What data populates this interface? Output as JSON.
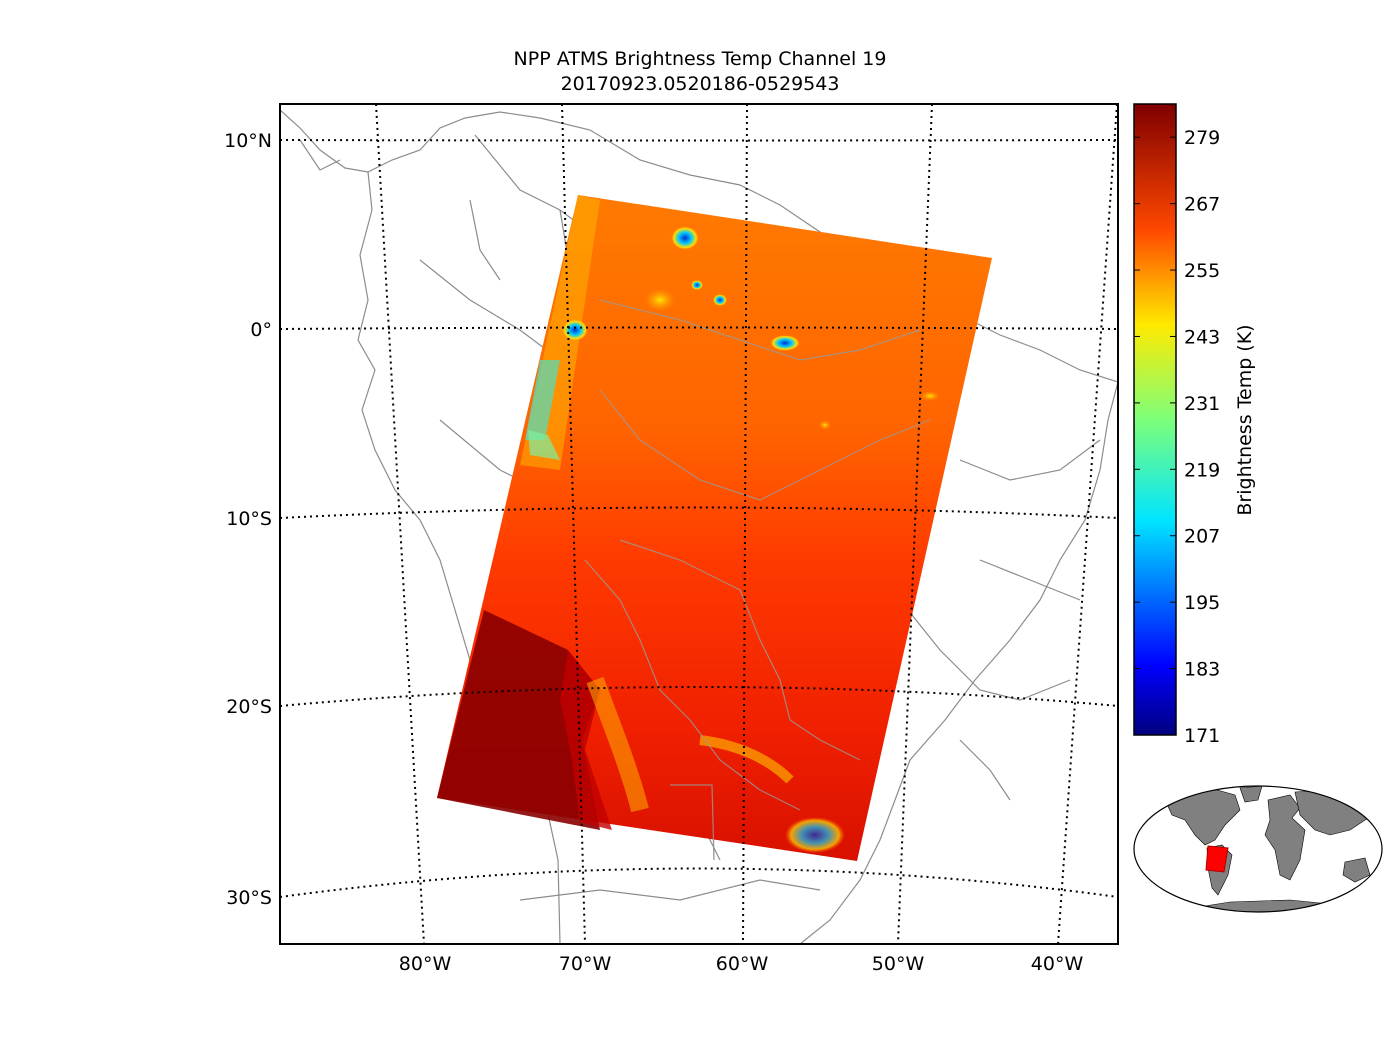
{
  "title": "NPP ATMS Brightness Temp Channel 19",
  "subtitle": "20170923.0520186-0529543",
  "map": {
    "lat_labels": [
      "10°N",
      "0°",
      "10°S",
      "20°S",
      "30°S"
    ],
    "lon_labels": [
      "80°W",
      "70°W",
      "60°W",
      "50°W",
      "40°W"
    ],
    "grid": "dotted",
    "swath_color": "#ff6a00"
  },
  "colorbar": {
    "label": "Brightness Temp (K)",
    "ticks": [
      "279",
      "267",
      "255",
      "243",
      "231",
      "219",
      "207",
      "195",
      "183",
      "171"
    ],
    "min": 171,
    "max": 285,
    "colormap": "jet"
  },
  "inset": {
    "land_color": "#808080",
    "highlight_color": "#ff0000"
  }
}
